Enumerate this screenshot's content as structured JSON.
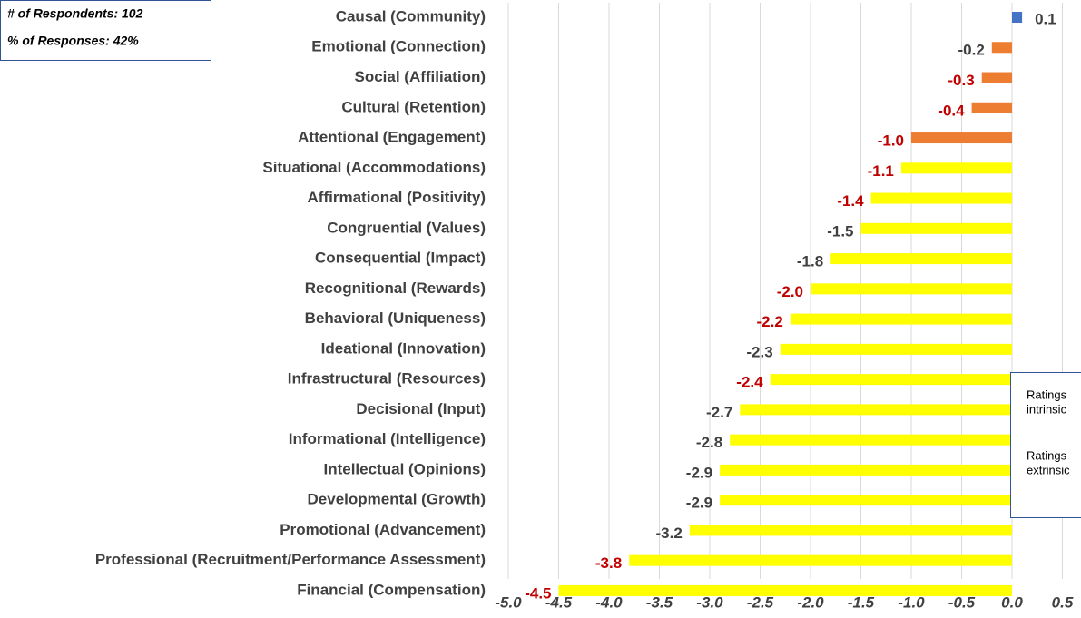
{
  "chart_data": {
    "type": "hbar",
    "annotations": [
      "# of Respondents: 102",
      "% of Responses: 42%"
    ],
    "legend_texts": [
      "Ratings",
      "intrinsic",
      "Ratings",
      "extrinsic"
    ],
    "categories": [
      "Causal (Community)",
      "Emotional (Connection)",
      "Social (Affiliation)",
      "Cultural (Retention)",
      "Attentional (Engagement)",
      "Situational (Accommodations)",
      "Affirmational (Positivity)",
      "Congruential (Values)",
      "Consequential (Impact)",
      "Recognitional (Rewards)",
      "Behavioral (Uniqueness)",
      "Ideational (Innovation)",
      "Infrastructural (Resources)",
      "Decisional (Input)",
      "Informational (Intelligence)",
      "Intellectual (Opinions)",
      "Developmental (Growth)",
      "Promotional (Advancement)",
      "Professional (Recruitment/Performance Assessment)",
      "Financial (Compensation)"
    ],
    "values": [
      0.1,
      -0.2,
      -0.3,
      -0.4,
      -1.0,
      -1.1,
      -1.4,
      -1.5,
      -1.8,
      -2.0,
      -2.2,
      -2.3,
      -2.4,
      -2.7,
      -2.8,
      -2.9,
      -2.9,
      -3.2,
      -3.8,
      -4.5
    ],
    "value_labels": [
      "0.1",
      "-0.2",
      "-0.3",
      "-0.4",
      "-1.0",
      "-1.1",
      "-1.4",
      "-1.5",
      "-1.8",
      "-2.0",
      "-2.2",
      "-2.3",
      "-2.4",
      "-2.7",
      "-2.8",
      "-2.9",
      "-2.9",
      "-3.2",
      "-3.8",
      "-4.5"
    ],
    "colors": [
      "#4472c4",
      "#ed7d31",
      "#ed7d31",
      "#ed7d31",
      "#ed7d31",
      "#ffff00",
      "#ffff00",
      "#ffff00",
      "#ffff00",
      "#ffff00",
      "#ffff00",
      "#ffff00",
      "#ffff00",
      "#ffff00",
      "#ffff00",
      "#ffff00",
      "#ffff00",
      "#ffff00",
      "#ffff00",
      "#ffff00"
    ],
    "label_colors": [
      "#404040",
      "#404040",
      "#c00000",
      "#c00000",
      "#c00000",
      "#c00000",
      "#c00000",
      "#404040",
      "#404040",
      "#c00000",
      "#c00000",
      "#404040",
      "#c00000",
      "#404040",
      "#404040",
      "#404040",
      "#404040",
      "#404040",
      "#c00000",
      "#c00000"
    ],
    "xlim": [
      -5.0,
      0.5
    ],
    "xticks": [
      {
        "value": -5,
        "label": "-5.0"
      },
      -4.5,
      {
        "value": -4,
        "label": "-4.0"
      },
      -3.5,
      {
        "value": -3,
        "label": "-3.0"
      },
      -2.5,
      {
        "value": -2,
        "label": "-2.0"
      },
      -1.5,
      {
        "value": -1,
        "label": "-1.0"
      },
      -0.5,
      {
        "value": 0,
        "label": "0.0"
      },
      0.5
    ],
    "grid": true
  }
}
